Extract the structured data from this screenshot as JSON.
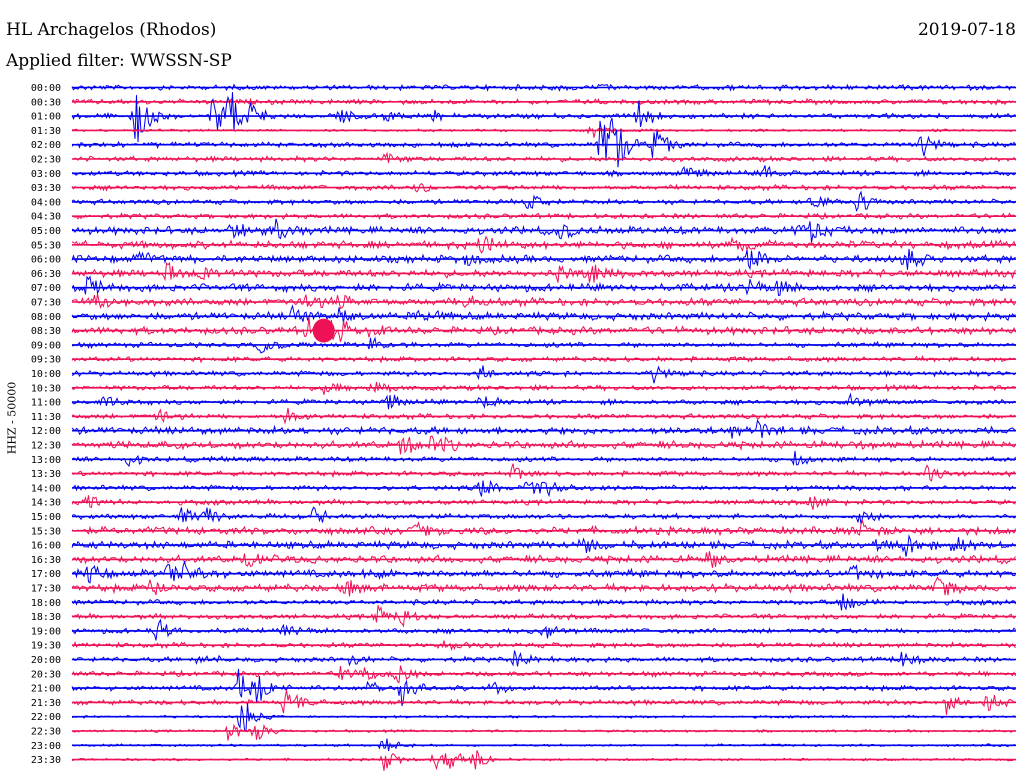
{
  "header": {
    "station": "HL Archagelos (Rhodos)",
    "date": "2019-07-18",
    "filter": "Applied filter: WWSSN-SP"
  },
  "channel_label": "HHZ - 50000",
  "colors": {
    "trace_a": "#0000ee",
    "trace_b": "#ee1155",
    "text": "#000000"
  },
  "chart_data": {
    "type": "line",
    "title": "HL Archagelos (Rhodos)",
    "subtitle": "Applied filter: WWSSN-SP",
    "date": "2019-07-18",
    "ylabel": "HHZ - 50000",
    "rows": [
      "00:00",
      "00:30",
      "01:00",
      "01:30",
      "02:00",
      "02:30",
      "03:00",
      "03:30",
      "04:00",
      "04:30",
      "05:00",
      "05:30",
      "06:00",
      "06:30",
      "07:00",
      "07:30",
      "08:00",
      "08:30",
      "09:00",
      "09:30",
      "10:00",
      "10:30",
      "11:00",
      "11:30",
      "12:00",
      "12:30",
      "13:00",
      "13:30",
      "14:00",
      "14:30",
      "15:00",
      "15:30",
      "16:00",
      "16:30",
      "17:00",
      "17:30",
      "18:00",
      "18:30",
      "19:00",
      "19:30",
      "20:00",
      "20:30",
      "21:00",
      "21:30",
      "22:00",
      "22:30",
      "23:00",
      "23:30"
    ],
    "row_minutes": 30,
    "alternating_colors": [
      "#0000ee",
      "#ee1155"
    ],
    "noise_level": [
      2,
      2,
      2,
      1,
      2,
      2,
      2,
      2,
      2,
      2,
      3,
      3,
      3,
      3,
      3,
      3,
      3,
      3,
      2,
      2,
      2,
      2,
      2,
      2,
      3,
      3,
      2,
      2,
      2,
      2,
      2,
      3,
      3,
      3,
      3,
      3,
      2,
      2,
      2,
      2,
      2,
      2,
      2,
      2,
      1,
      1,
      1,
      1
    ],
    "events": [
      {
        "row": 0,
        "minute": 15.0,
        "amp": 4
      },
      {
        "row": 0,
        "minute": 16.5,
        "amp": 5
      },
      {
        "row": 0,
        "minute": 22.5,
        "amp": 4
      },
      {
        "row": 2,
        "minute": 2.0,
        "amp": 42
      },
      {
        "row": 2,
        "minute": 4.5,
        "amp": 28
      },
      {
        "row": 2,
        "minute": 5.5,
        "amp": 22
      },
      {
        "row": 2,
        "minute": 8.5,
        "amp": 12
      },
      {
        "row": 2,
        "minute": 10.0,
        "amp": 8
      },
      {
        "row": 2,
        "minute": 11.5,
        "amp": 6
      },
      {
        "row": 2,
        "minute": 18.0,
        "amp": 18
      },
      {
        "row": 3,
        "minute": 16.5,
        "amp": 10
      },
      {
        "row": 4,
        "minute": 18.5,
        "amp": 22
      },
      {
        "row": 4,
        "minute": 27.0,
        "amp": 18
      },
      {
        "row": 5,
        "minute": 10.0,
        "amp": 8
      },
      {
        "row": 6,
        "minute": 19.5,
        "amp": 10
      },
      {
        "row": 6,
        "minute": 22.0,
        "amp": 12
      },
      {
        "row": 7,
        "minute": 11.0,
        "amp": 7
      },
      {
        "row": 8,
        "minute": 14.5,
        "amp": 10
      },
      {
        "row": 8,
        "minute": 23.5,
        "amp": 12
      },
      {
        "row": 8,
        "minute": 25.0,
        "amp": 16
      },
      {
        "row": 10,
        "minute": 5.0,
        "amp": 12
      },
      {
        "row": 10,
        "minute": 6.5,
        "amp": 14
      },
      {
        "row": 10,
        "minute": 15.5,
        "amp": 10
      },
      {
        "row": 10,
        "minute": 23.0,
        "amp": 12
      },
      {
        "row": 10,
        "minute": 23.5,
        "amp": 12
      },
      {
        "row": 11,
        "minute": 13.0,
        "amp": 12
      },
      {
        "row": 11,
        "minute": 21.0,
        "amp": 10
      },
      {
        "row": 12,
        "minute": 2.2,
        "amp": 10
      },
      {
        "row": 12,
        "minute": 12.5,
        "amp": 10
      },
      {
        "row": 12,
        "minute": 21.5,
        "amp": 14
      },
      {
        "row": 12,
        "minute": 26.5,
        "amp": 16
      },
      {
        "row": 13,
        "minute": 3.0,
        "amp": 10
      },
      {
        "row": 13,
        "minute": 4.2,
        "amp": 10
      },
      {
        "row": 13,
        "minute": 15.5,
        "amp": 12
      },
      {
        "row": 13,
        "minute": 16.5,
        "amp": 12
      },
      {
        "row": 14,
        "minute": 0.5,
        "amp": 12
      },
      {
        "row": 14,
        "minute": 21.5,
        "amp": 10
      },
      {
        "row": 14,
        "minute": 22.5,
        "amp": 10
      },
      {
        "row": 15,
        "minute": 0.8,
        "amp": 10
      },
      {
        "row": 15,
        "minute": 7.5,
        "amp": 12
      },
      {
        "row": 15,
        "minute": 8.5,
        "amp": 10
      },
      {
        "row": 15,
        "minute": 12.5,
        "amp": 8
      },
      {
        "row": 16,
        "minute": 7.0,
        "amp": 10
      },
      {
        "row": 16,
        "minute": 8.5,
        "amp": 10
      },
      {
        "row": 16,
        "minute": 11.0,
        "amp": 12
      },
      {
        "row": 17,
        "minute": 7.5,
        "amp": 14
      },
      {
        "row": 17,
        "minute": 8.5,
        "amp": 16
      },
      {
        "row": 17,
        "minute": 9.5,
        "amp": 10
      },
      {
        "row": 18,
        "minute": 6.0,
        "amp": 10
      },
      {
        "row": 18,
        "minute": 9.5,
        "amp": 8
      },
      {
        "row": 20,
        "minute": 13.0,
        "amp": 10
      },
      {
        "row": 20,
        "minute": 18.5,
        "amp": 12
      },
      {
        "row": 21,
        "minute": 8.0,
        "amp": 8
      },
      {
        "row": 21,
        "minute": 9.5,
        "amp": 8
      },
      {
        "row": 22,
        "minute": 1.0,
        "amp": 12
      },
      {
        "row": 22,
        "minute": 10.0,
        "amp": 12
      },
      {
        "row": 22,
        "minute": 13.0,
        "amp": 14
      },
      {
        "row": 22,
        "minute": 24.7,
        "amp": 10
      },
      {
        "row": 23,
        "minute": 2.7,
        "amp": 10
      },
      {
        "row": 23,
        "minute": 6.8,
        "amp": 12
      },
      {
        "row": 24,
        "minute": 21.0,
        "amp": 8
      },
      {
        "row": 24,
        "minute": 21.8,
        "amp": 8
      },
      {
        "row": 25,
        "minute": 10.5,
        "amp": 14
      },
      {
        "row": 25,
        "minute": 11.5,
        "amp": 16
      },
      {
        "row": 26,
        "minute": 1.8,
        "amp": 8
      },
      {
        "row": 26,
        "minute": 23.0,
        "amp": 10
      },
      {
        "row": 27,
        "minute": 14.0,
        "amp": 10
      },
      {
        "row": 27,
        "minute": 27.2,
        "amp": 12
      },
      {
        "row": 28,
        "minute": 13.0,
        "amp": 12
      },
      {
        "row": 28,
        "minute": 14.5,
        "amp": 14
      },
      {
        "row": 28,
        "minute": 15.0,
        "amp": 12
      },
      {
        "row": 29,
        "minute": 0.5,
        "amp": 12
      },
      {
        "row": 29,
        "minute": 23.5,
        "amp": 12
      },
      {
        "row": 30,
        "minute": 3.5,
        "amp": 10
      },
      {
        "row": 30,
        "minute": 4.3,
        "amp": 12
      },
      {
        "row": 30,
        "minute": 7.7,
        "amp": 10
      },
      {
        "row": 30,
        "minute": 25.0,
        "amp": 12
      },
      {
        "row": 31,
        "minute": 11.0,
        "amp": 12
      },
      {
        "row": 31,
        "minute": 25.1,
        "amp": 12
      },
      {
        "row": 32,
        "minute": 16.2,
        "amp": 10
      },
      {
        "row": 32,
        "minute": 25.5,
        "amp": 12
      },
      {
        "row": 32,
        "minute": 26.5,
        "amp": 14
      },
      {
        "row": 32,
        "minute": 28.0,
        "amp": 12
      },
      {
        "row": 33,
        "minute": 5.5,
        "amp": 10
      },
      {
        "row": 33,
        "minute": 20.2,
        "amp": 12
      },
      {
        "row": 34,
        "minute": 0.5,
        "amp": 10
      },
      {
        "row": 34,
        "minute": 3.0,
        "amp": 12
      },
      {
        "row": 34,
        "minute": 3.6,
        "amp": 14
      },
      {
        "row": 34,
        "minute": 9.3,
        "amp": 10
      },
      {
        "row": 34,
        "minute": 24.8,
        "amp": 12
      },
      {
        "row": 35,
        "minute": 2.5,
        "amp": 10
      },
      {
        "row": 35,
        "minute": 8.7,
        "amp": 12
      },
      {
        "row": 35,
        "minute": 27.5,
        "amp": 14
      },
      {
        "row": 36,
        "minute": 24.5,
        "amp": 14
      },
      {
        "row": 37,
        "minute": 9.7,
        "amp": 12
      },
      {
        "row": 37,
        "minute": 10.5,
        "amp": 10
      },
      {
        "row": 38,
        "minute": 2.7,
        "amp": 14
      },
      {
        "row": 38,
        "minute": 6.8,
        "amp": 10
      },
      {
        "row": 38,
        "minute": 15.0,
        "amp": 10
      },
      {
        "row": 39,
        "minute": 11.9,
        "amp": 8
      },
      {
        "row": 40,
        "minute": 4.0,
        "amp": 10
      },
      {
        "row": 40,
        "minute": 8.8,
        "amp": 10
      },
      {
        "row": 40,
        "minute": 14.1,
        "amp": 12
      },
      {
        "row": 40,
        "minute": 26.4,
        "amp": 14
      },
      {
        "row": 41,
        "minute": 8.5,
        "amp": 10
      },
      {
        "row": 41,
        "minute": 9.2,
        "amp": 12
      },
      {
        "row": 41,
        "minute": 10.3,
        "amp": 14
      },
      {
        "row": 42,
        "minute": 5.3,
        "amp": 20
      },
      {
        "row": 42,
        "minute": 5.8,
        "amp": 22
      },
      {
        "row": 42,
        "minute": 9.4,
        "amp": 14
      },
      {
        "row": 42,
        "minute": 10.5,
        "amp": 22
      },
      {
        "row": 42,
        "minute": 13.3,
        "amp": 10
      },
      {
        "row": 43,
        "minute": 6.8,
        "amp": 22
      },
      {
        "row": 43,
        "minute": 27.8,
        "amp": 12
      },
      {
        "row": 43,
        "minute": 29.1,
        "amp": 14
      },
      {
        "row": 44,
        "minute": 5.3,
        "amp": 16
      },
      {
        "row": 44,
        "minute": 5.5,
        "amp": 16
      },
      {
        "row": 45,
        "minute": 5.0,
        "amp": 14
      },
      {
        "row": 45,
        "minute": 5.8,
        "amp": 16
      },
      {
        "row": 46,
        "minute": 9.9,
        "amp": 12
      },
      {
        "row": 47,
        "minute": 9.9,
        "amp": 18
      },
      {
        "row": 47,
        "minute": 11.5,
        "amp": 14
      },
      {
        "row": 47,
        "minute": 12.0,
        "amp": 12
      },
      {
        "row": 47,
        "minute": 12.8,
        "amp": 16
      },
      {
        "row": 4,
        "minute": 16.8,
        "amp": 48
      },
      {
        "row": 4,
        "minute": 17.2,
        "amp": 40
      },
      {
        "row": 2,
        "minute": 5.0,
        "amp": 30
      },
      {
        "row": 17,
        "minute": 8.0,
        "amp": 22
      }
    ]
  }
}
